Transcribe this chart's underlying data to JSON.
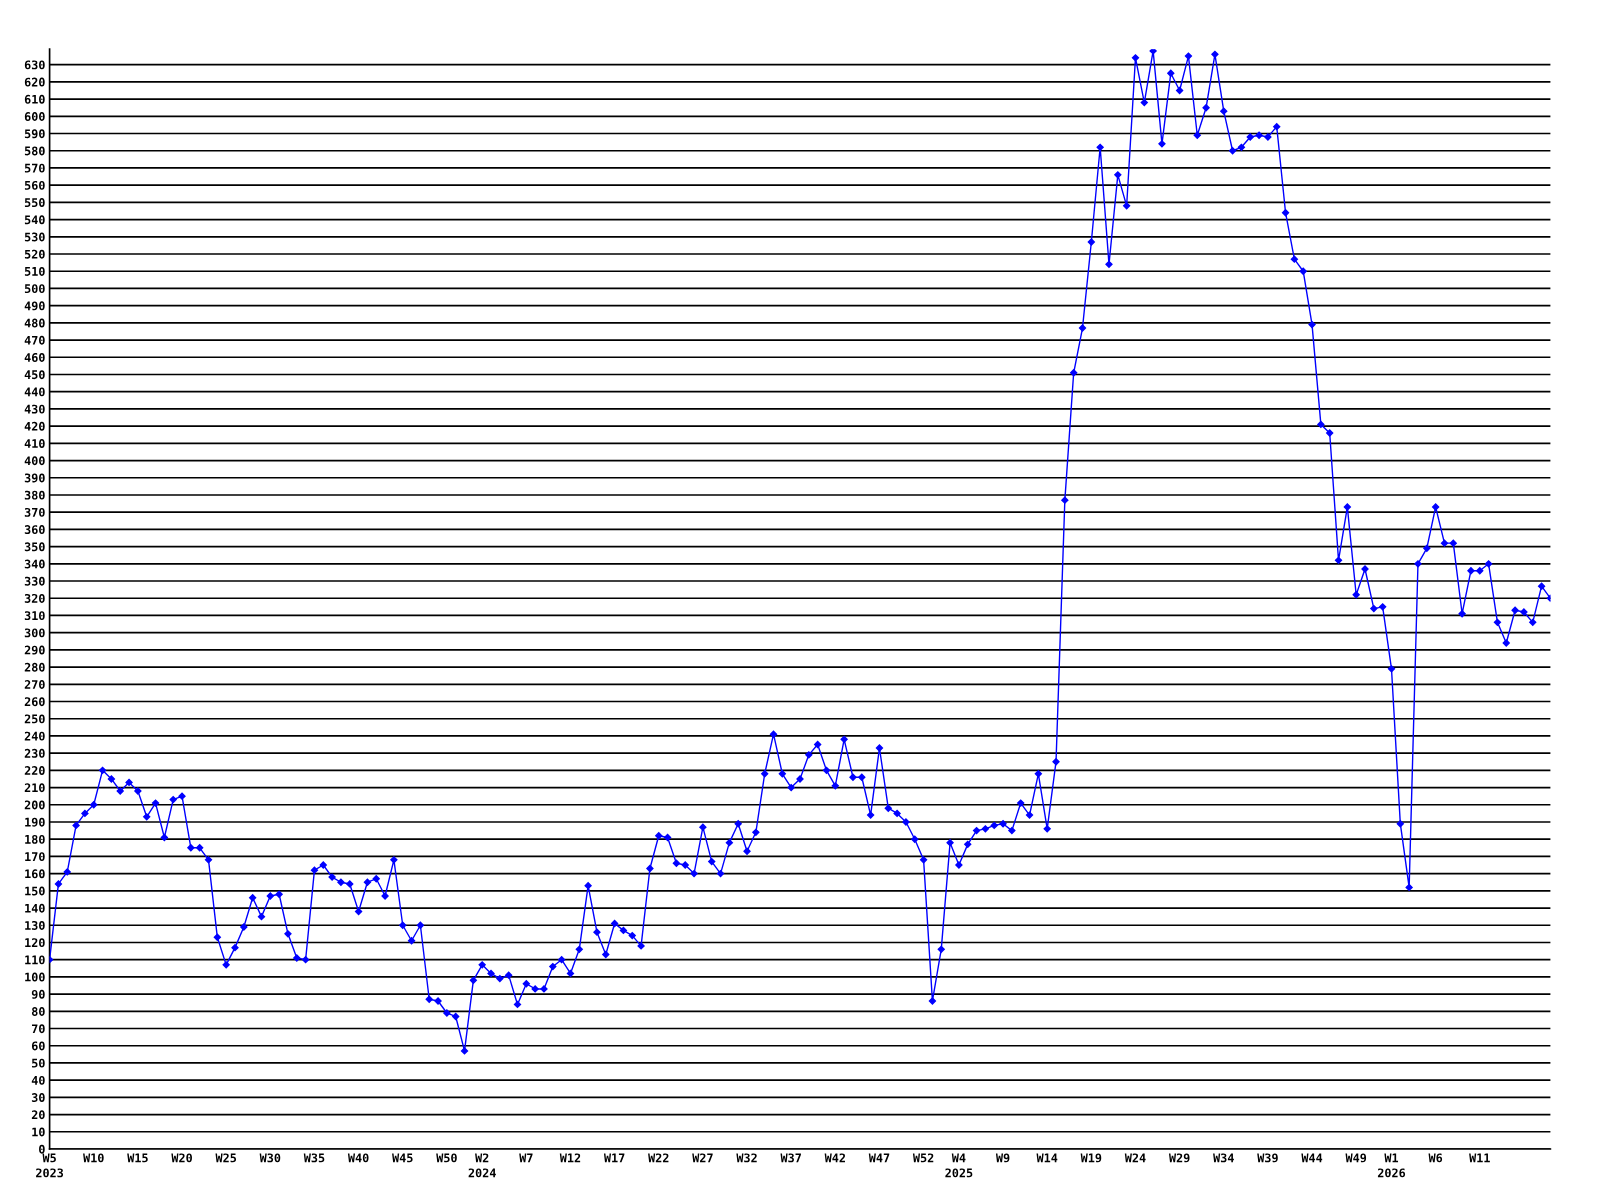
{
  "chart_data": {
    "type": "line",
    "categories": [
      "W5\n2023",
      null,
      null,
      null,
      null,
      "W10",
      null,
      null,
      null,
      null,
      "W15",
      null,
      null,
      null,
      null,
      "W20",
      null,
      null,
      null,
      null,
      "W25",
      null,
      null,
      null,
      null,
      "W30",
      null,
      null,
      null,
      null,
      "W35",
      null,
      null,
      null,
      null,
      "W40",
      null,
      null,
      null,
      null,
      "W45",
      null,
      null,
      null,
      null,
      "W50",
      null,
      null,
      null,
      "W2\n2024",
      null,
      null,
      null,
      null,
      "W7",
      null,
      null,
      null,
      null,
      "W12",
      null,
      null,
      null,
      null,
      "W17",
      null,
      null,
      null,
      null,
      "W22",
      null,
      null,
      null,
      null,
      "W27",
      null,
      null,
      null,
      null,
      "W32",
      null,
      null,
      null,
      null,
      "W37",
      null,
      null,
      null,
      null,
      "W42",
      null,
      null,
      null,
      null,
      "W47",
      null,
      null,
      null,
      null,
      "W52",
      null,
      null,
      null,
      "W4\n2025",
      null,
      null,
      null,
      null,
      "W9",
      null,
      null,
      null,
      null,
      "W14",
      null,
      null,
      null,
      null,
      "W19",
      null,
      null,
      null,
      null,
      "W24",
      null,
      null,
      null,
      null,
      "W29",
      null,
      null,
      null,
      null,
      "W34",
      null,
      null,
      null,
      null,
      "W39",
      null,
      null,
      null,
      null,
      "W44",
      null,
      null,
      null,
      null,
      "W49",
      null,
      null,
      null,
      "W1\n2026",
      null,
      null,
      null,
      null,
      "W6",
      null,
      null,
      null,
      null,
      "W11",
      null,
      null,
      null,
      null,
      null,
      null,
      null,
      null
    ],
    "series": [
      {
        "color": "#0000ff",
        "values": [
          110,
          154,
          161,
          188,
          195,
          200,
          220,
          215,
          208,
          213,
          208,
          193,
          201,
          181,
          203,
          205,
          175,
          175,
          168,
          123,
          107,
          117,
          129,
          146,
          135,
          147,
          148,
          125,
          111,
          110,
          162,
          165,
          158,
          155,
          154,
          138,
          155,
          157,
          147,
          168,
          130,
          121,
          130,
          87,
          86,
          79,
          77,
          57,
          98,
          107,
          102,
          99,
          101,
          84,
          96,
          93,
          93,
          106,
          110,
          102,
          116,
          153,
          126,
          113,
          131,
          127,
          124,
          118,
          163,
          182,
          181,
          166,
          165,
          160,
          187,
          167,
          160,
          178,
          189,
          173,
          184,
          218,
          241,
          218,
          210,
          215,
          229,
          235,
          220,
          211,
          238,
          216,
          216,
          194,
          233,
          198,
          195,
          190,
          180,
          168,
          86,
          116,
          178,
          165,
          177,
          185,
          186,
          188,
          189,
          185,
          201,
          194,
          218,
          186,
          225,
          377,
          451,
          477,
          527,
          582,
          514,
          566,
          548,
          634,
          608,
          638,
          584,
          625,
          615,
          635,
          589,
          605,
          636,
          603,
          580,
          582,
          588,
          589,
          588,
          594,
          544,
          517,
          510,
          479,
          421,
          416,
          342,
          373,
          322,
          337,
          314,
          315,
          279,
          189,
          152,
          340,
          349,
          373,
          352,
          352,
          311,
          336,
          336,
          340,
          306,
          294,
          313,
          312,
          306,
          327,
          320
        ]
      }
    ],
    "ylim": [
      0,
      639
    ],
    "yticks": [
      0,
      10,
      20,
      30,
      40,
      50,
      60,
      70,
      80,
      90,
      100,
      110,
      120,
      130,
      140,
      150,
      160,
      170,
      180,
      190,
      200,
      210,
      220,
      230,
      240,
      250,
      260,
      270,
      280,
      290,
      300,
      310,
      320,
      330,
      340,
      350,
      360,
      370,
      380,
      390,
      400,
      410,
      420,
      430,
      440,
      450,
      460,
      470,
      480,
      490,
      500,
      510,
      520,
      530,
      540,
      550,
      560,
      570,
      580,
      590,
      600,
      610,
      620,
      630
    ],
    "grid": "y",
    "marker": "diamond",
    "line_style": "solid"
  }
}
